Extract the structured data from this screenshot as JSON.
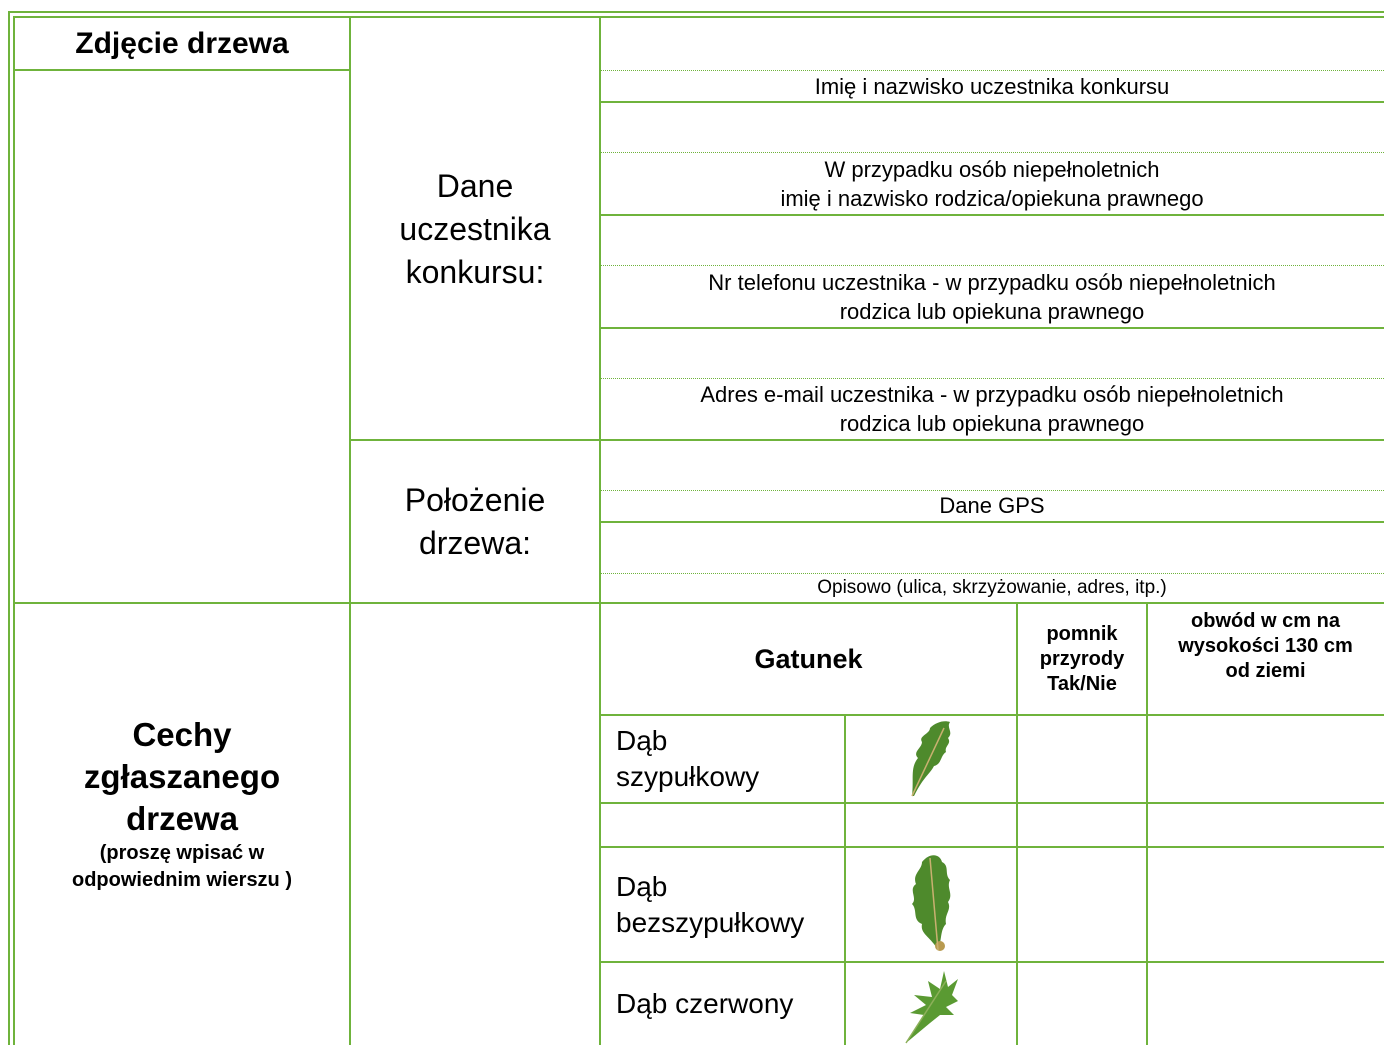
{
  "photo": {
    "title": "Zdjęcie drzewa"
  },
  "participant": {
    "label": [
      "Dane",
      "uczestnika",
      "konkursu:"
    ],
    "fields": [
      [
        "Imię i nazwisko uczestnika konkursu"
      ],
      [
        "W przypadku osób niepełnoletnich",
        "imię i nazwisko rodzica/opiekuna prawnego"
      ],
      [
        "Nr telefonu uczestnika - w przypadku osób niepełnoletnich",
        "rodzica lub opiekuna prawnego"
      ],
      [
        "Adres e-mail uczestnika - w przypadku osób niepełnoletnich",
        "rodzica lub opiekuna prawnego"
      ]
    ]
  },
  "location": {
    "label": [
      "Położenie",
      "drzewa:"
    ],
    "fields": [
      [
        "Dane GPS"
      ],
      [
        "Opisowo (ulica, skrzyżowanie, adres, itp.)"
      ]
    ]
  },
  "features": {
    "title": [
      "Cechy",
      "zgłaszanego",
      "drzewa"
    ],
    "note": [
      "(proszę wpisać w",
      "odpowiednim wierszu )"
    ]
  },
  "species_table": {
    "headers": [
      [
        "Gatunek"
      ],
      [
        "pomnik",
        "przyrody",
        "Tak/Nie"
      ],
      [
        "obwód w cm na",
        "wysokości 130 cm",
        "od ziemi"
      ]
    ],
    "rows": [
      [
        "Dąb",
        "szypułkowy"
      ],
      [
        "Dąb",
        "bezszypułkowy"
      ],
      [
        "Dąb czerwony"
      ]
    ]
  }
}
